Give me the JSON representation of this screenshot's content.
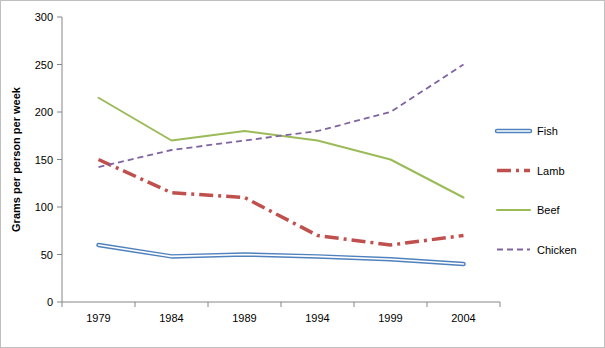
{
  "chart_data": {
    "type": "line",
    "y_label": "Grams per person per week",
    "categories": [
      "1979",
      "1984",
      "1989",
      "1994",
      "1999",
      "2004"
    ],
    "series": [
      {
        "name": "Fish",
        "color": "#4f81bd",
        "line_style": "double",
        "values": [
          60,
          48,
          50,
          48,
          45,
          40
        ]
      },
      {
        "name": "Lamb",
        "color": "#c0504d",
        "line_style": "dash-dot",
        "values": [
          150,
          115,
          110,
          70,
          60,
          70
        ]
      },
      {
        "name": "Beef",
        "color": "#9bbb59",
        "line_style": "solid",
        "values": [
          215,
          170,
          180,
          170,
          150,
          110
        ]
      },
      {
        "name": "Chicken",
        "color": "#8064a2",
        "line_style": "dashed",
        "values": [
          142,
          160,
          170,
          180,
          200,
          250
        ]
      }
    ],
    "ylim": [
      0,
      300
    ],
    "yticks": [
      0,
      50,
      100,
      150,
      200,
      250,
      300
    ],
    "grid": false,
    "legend": "right"
  }
}
